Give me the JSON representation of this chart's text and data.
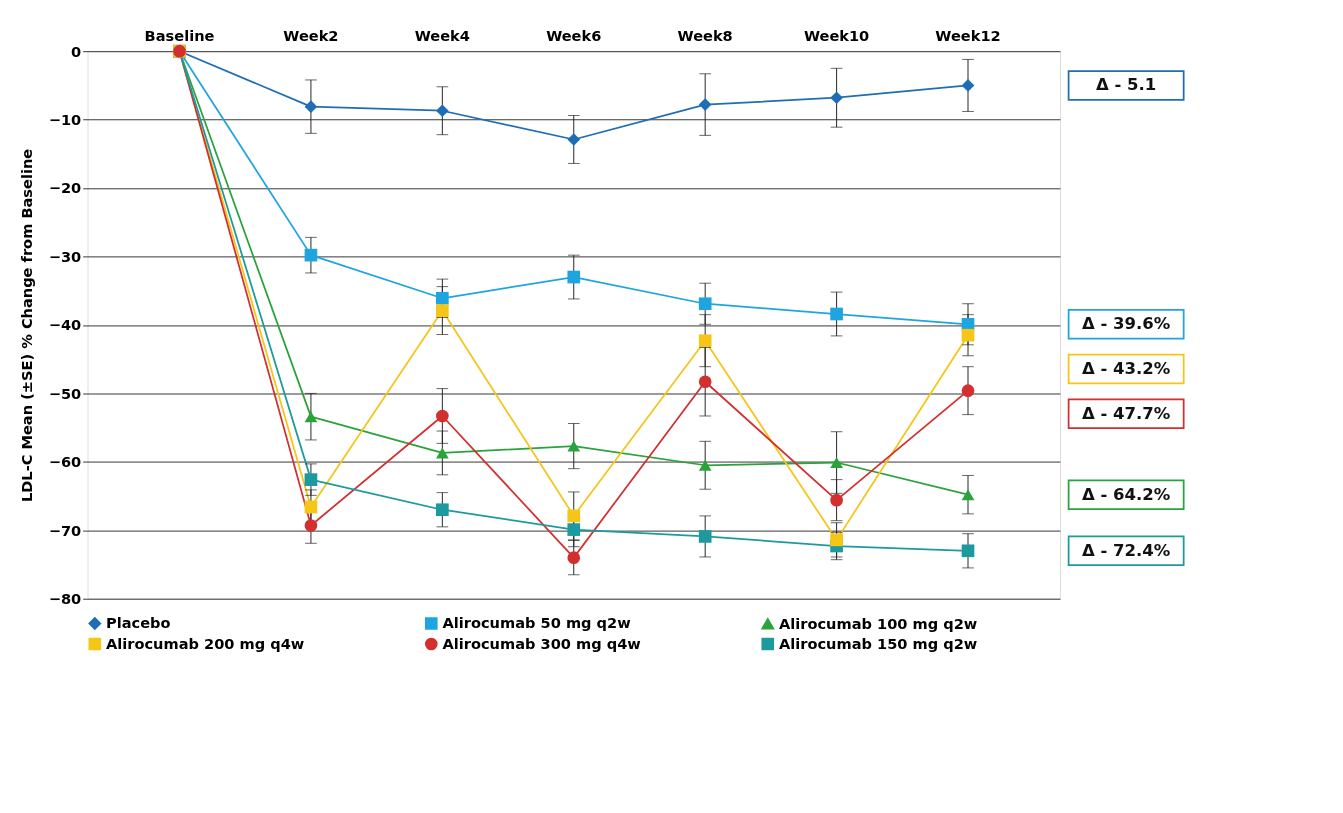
{
  "chart_data": {
    "type": "line",
    "ylabel": "LDL-C Mean (±SE) % Change from Baseline",
    "categories": [
      "Baseline",
      "Week2",
      "Week4",
      "Week6",
      "Week8",
      "Week10",
      "Week12"
    ],
    "ylim": [
      -80,
      0
    ],
    "yticks": [
      -80,
      -70,
      -60,
      -50,
      -40,
      -30,
      -20,
      -10,
      0
    ],
    "grid": "y",
    "legend": "bottom",
    "series": [
      {
        "name": "Placebo",
        "color": "#1f6db5",
        "marker": "diamond",
        "values": [
          0,
          -8.1,
          -8.7,
          -12.9,
          -7.8,
          -6.8,
          -5.0
        ],
        "errors": [
          null,
          3.9,
          3.5,
          3.5,
          4.5,
          4.3,
          3.8
        ]
      },
      {
        "name": "Alirocumab 50 mg q2w",
        "color": "#1ea5e0",
        "marker": "square",
        "values": [
          0,
          -29.8,
          -36.1,
          -33.0,
          -36.9,
          -38.4,
          -39.9
        ],
        "errors": [
          null,
          2.6,
          2.8,
          3.2,
          3.0,
          3.2,
          3.0
        ]
      },
      {
        "name": "Alirocumab 100 mg q2w",
        "color": "#2aa33b",
        "marker": "triangle",
        "values": [
          0,
          -53.4,
          -58.7,
          -57.7,
          -60.5,
          -60.1,
          -64.8
        ],
        "errors": [
          null,
          3.4,
          3.2,
          3.3,
          3.5,
          4.5,
          2.8
        ]
      },
      {
        "name": "Alirocumab 200 mg q4w",
        "color": "#f5c518",
        "marker": "square",
        "values": [
          0,
          -66.6,
          -37.9,
          -67.9,
          -42.3,
          -71.4,
          -41.5
        ],
        "errors": [
          null,
          2.5,
          3.5,
          3.5,
          3.8,
          2.5,
          3.0
        ]
      },
      {
        "name": "Alirocumab 300 mg q4w",
        "color": "#d32f2f",
        "marker": "circle",
        "values": [
          0,
          -69.3,
          -53.3,
          -74.0,
          -48.3,
          -65.6,
          -49.6
        ],
        "errors": [
          null,
          2.6,
          4.0,
          2.5,
          5.0,
          3.0,
          3.5
        ]
      },
      {
        "name": "Alirocumab 150 mg q2w",
        "color": "#1c9aa0",
        "marker": "square",
        "values": [
          0,
          -62.6,
          -67.0,
          -69.9,
          -70.9,
          -72.3,
          -73.0
        ],
        "errors": [
          null,
          2.3,
          2.5,
          2.5,
          3.0,
          2.0,
          2.5
        ]
      }
    ],
    "annotations": [
      "Δ - 5.1",
      "Δ - 39.6%",
      "Δ - 43.2%",
      "Δ - 47.7%",
      "Δ - 64.2%",
      "Δ - 72.4%"
    ]
  }
}
